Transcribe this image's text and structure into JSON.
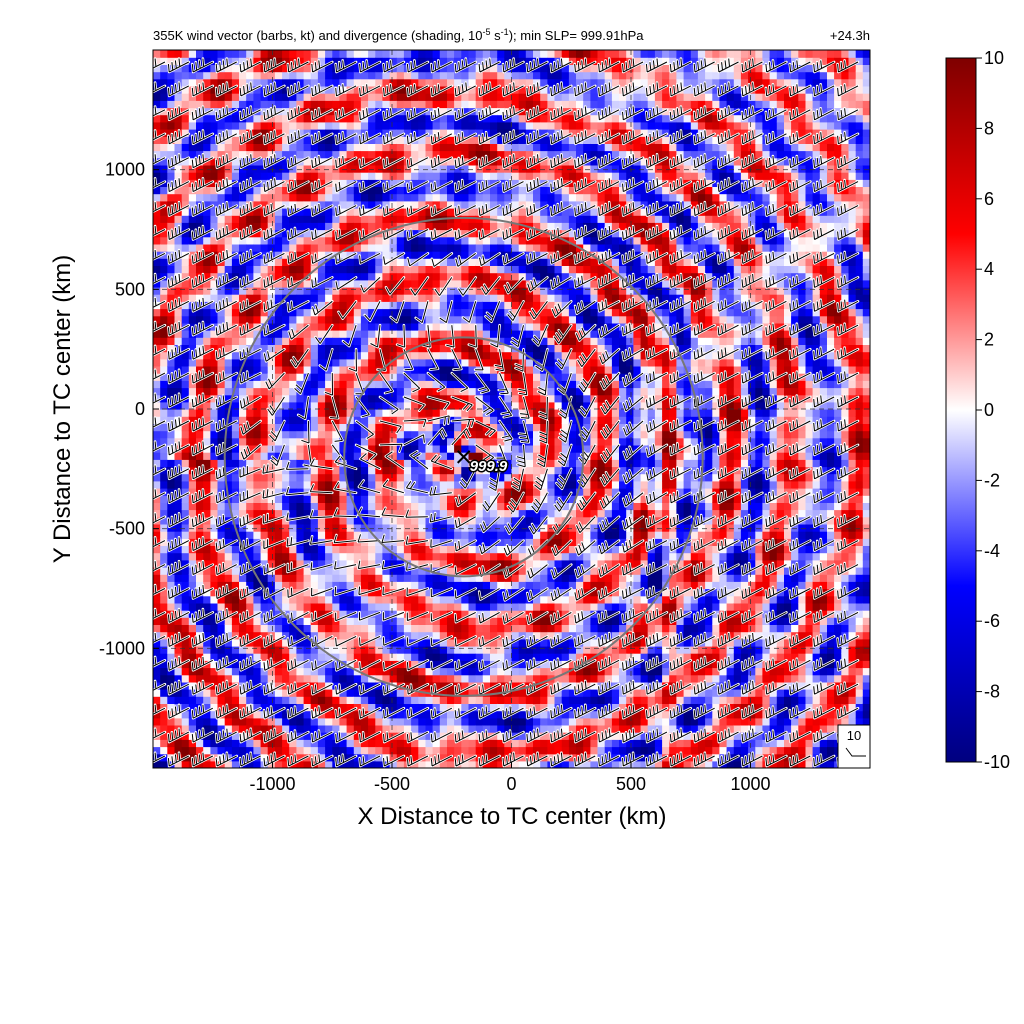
{
  "chart_data": {
    "type": "heatmap",
    "title": "355K wind vector (barbs, kt) and divergence (shading, 10",
    "title_exp": "-5",
    "title_mid": " s",
    "title_exp2": "-1",
    "title_end": "); min SLP= 999.91hPa",
    "time_label": "+24.3h",
    "xlabel": "X Distance to TC center (km)",
    "ylabel": "Y Distance to TC center (km)",
    "xlim": [
      -1500,
      1500
    ],
    "ylim": [
      -1500,
      1500
    ],
    "xticks": [
      -1000,
      -500,
      0,
      500,
      1000
    ],
    "yticks": [
      -1000,
      -500,
      0,
      500,
      1000
    ],
    "grid": true,
    "colorbar": {
      "min": -10,
      "max": 10,
      "ticks": [
        10,
        8,
        6,
        4,
        2,
        0,
        -2,
        -4,
        -6,
        -8,
        -10
      ],
      "colormap": [
        "#00007f",
        "#0000ff",
        "#ffffff",
        "#ff0000",
        "#7f0000"
      ]
    },
    "center": {
      "x": -200,
      "y": -200,
      "label": "999.9"
    },
    "range_rings_km": [
      500,
      1000
    ],
    "barb_legend": {
      "value": "10"
    }
  }
}
